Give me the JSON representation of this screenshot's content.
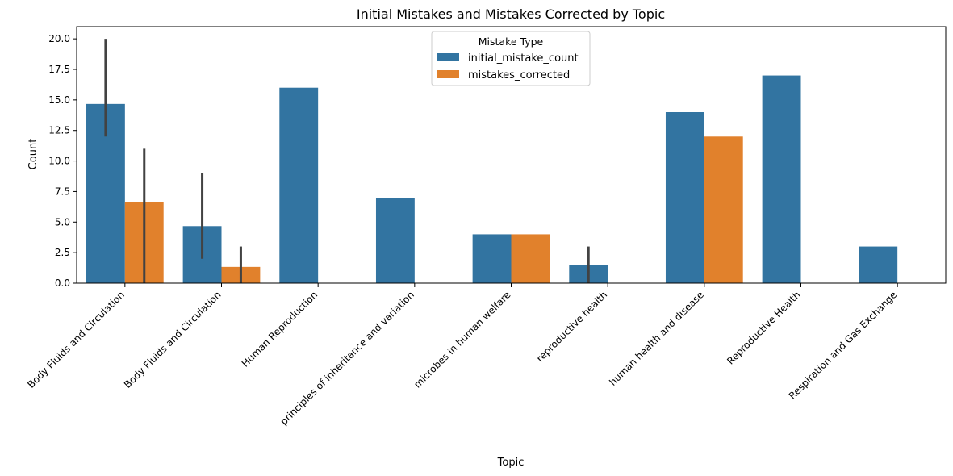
{
  "chart_data": {
    "type": "bar",
    "title": "Initial Mistakes and Mistakes Corrected by Topic",
    "xlabel": "Topic",
    "ylabel": "Count",
    "ylim": [
      0,
      21
    ],
    "yticks": [
      "0.0",
      "2.5",
      "5.0",
      "7.5",
      "10.0",
      "12.5",
      "15.0",
      "17.5",
      "20.0"
    ],
    "categories": [
      "Body Fluids and Circulation",
      "Body Fluids and Circulation ",
      "Human Reproduction",
      "principles of inheritance and variation",
      "microbes in human welfare",
      "reproductive health",
      "human health and disease",
      "Reproductive Health",
      "Respiration and Gas Exchange"
    ],
    "series": [
      {
        "name": "initial_mistake_count",
        "color": "#3274a1",
        "values": [
          14.67,
          4.67,
          16,
          7,
          4,
          1.5,
          14,
          17,
          3
        ],
        "error_bars": [
          [
            12,
            20
          ],
          [
            2,
            9
          ],
          null,
          null,
          null,
          [
            0,
            3
          ],
          null,
          null,
          null
        ]
      },
      {
        "name": "mistakes_corrected",
        "color": "#e1812c",
        "values": [
          6.67,
          1.33,
          0,
          0,
          4,
          0,
          12,
          0,
          0
        ],
        "error_bars": [
          [
            0,
            11
          ],
          [
            0,
            3
          ],
          null,
          null,
          null,
          null,
          null,
          null,
          null
        ]
      }
    ],
    "legend": {
      "title": "Mistake Type",
      "placement": "upper-center"
    },
    "grid": false
  }
}
